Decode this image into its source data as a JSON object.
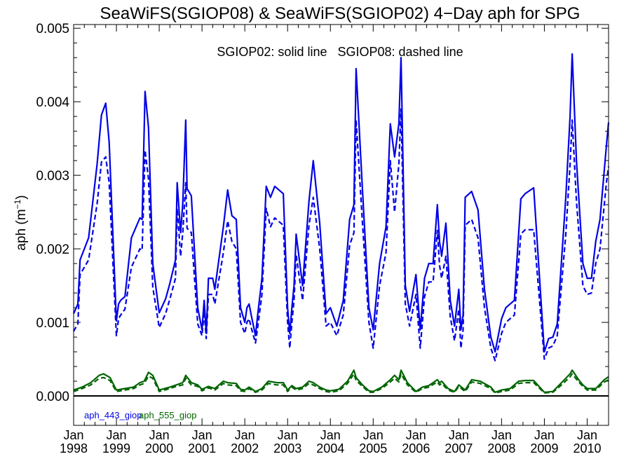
{
  "chart_data": {
    "type": "line",
    "title": "SeaWiFS(SGIOP08) & SeaWiFS(SGIOP02) 4−Day aph for SPG",
    "annotation": "SGIOP02: solid line   SGIOP08: dashed line",
    "ylabel_main": "aph (m",
    "ylabel_sup": "−1",
    "ylabel_close": ")",
    "xlim": [
      1998.0,
      2010.5
    ],
    "ylim": [
      -0.0004,
      0.00505
    ],
    "y_ticks": [
      0.0,
      0.001,
      0.002,
      0.003,
      0.004,
      0.005
    ],
    "y_tick_labels": [
      "0.000",
      "0.001",
      "0.002",
      "0.003",
      "0.004",
      "0.005"
    ],
    "x_ticks": [
      1998,
      1999,
      2000,
      2001,
      2002,
      2003,
      2004,
      2005,
      2006,
      2007,
      2008,
      2009,
      2010
    ],
    "x_tick_month": "Jan",
    "x_tick_years": [
      "1998",
      "1999",
      "2000",
      "2001",
      "2002",
      "2003",
      "2004",
      "2005",
      "2006",
      "2007",
      "2008",
      "2009",
      "2010"
    ],
    "zero_line": 0.0,
    "legend": [
      {
        "label": "aph_443_giop",
        "color": "#0000e6"
      },
      {
        "label": "aph_555_giop",
        "color": "#006400"
      }
    ],
    "series": [
      {
        "name": "aph_443_giop",
        "style": "solid",
        "color": "#0000e6",
        "x": [
          1998.0,
          1998.1,
          1998.15,
          1998.35,
          1998.55,
          1998.65,
          1998.75,
          1998.83,
          1999.0,
          1999.05,
          1999.1,
          1999.2,
          1999.35,
          1999.55,
          1999.6,
          1999.67,
          1999.75,
          1999.85,
          2000.0,
          2000.15,
          2000.25,
          2000.38,
          2000.42,
          2000.5,
          2000.55,
          2000.62,
          2000.65,
          2000.75,
          2000.9,
          2001.0,
          2001.05,
          2001.1,
          2001.15,
          2001.25,
          2001.3,
          2001.5,
          2001.6,
          2001.7,
          2001.8,
          2001.9,
          2002.0,
          2002.05,
          2002.1,
          2002.15,
          2002.25,
          2002.3,
          2002.4,
          2002.5,
          2002.6,
          2002.7,
          2002.9,
          2003.0,
          2003.05,
          2003.1,
          2003.15,
          2003.2,
          2003.35,
          2003.5,
          2003.6,
          2003.75,
          2003.9,
          2004.0,
          2004.15,
          2004.3,
          2004.45,
          2004.55,
          2004.6,
          2004.75,
          2004.9,
          2005.0,
          2005.15,
          2005.3,
          2005.4,
          2005.5,
          2005.6,
          2005.65,
          2005.75,
          2005.85,
          2006.0,
          2006.1,
          2006.2,
          2006.3,
          2006.4,
          2006.5,
          2006.55,
          2006.6,
          2006.7,
          2006.8,
          2006.9,
          2007.0,
          2007.05,
          2007.1,
          2007.15,
          2007.3,
          2007.45,
          2007.6,
          2007.75,
          2007.85,
          2008.0,
          2008.1,
          2008.2,
          2008.3,
          2008.45,
          2008.55,
          2008.75,
          2009.0,
          2009.1,
          2009.2,
          2009.3,
          2009.5,
          2009.6,
          2009.65,
          2009.75,
          2009.9,
          2010.0,
          2010.1,
          2010.2,
          2010.3,
          2010.45,
          2010.5
        ],
        "values": [
          0.00112,
          0.00125,
          0.00185,
          0.00215,
          0.00316,
          0.00382,
          0.00398,
          0.00345,
          0.00102,
          0.00125,
          0.0013,
          0.00135,
          0.00215,
          0.00242,
          0.0024,
          0.00414,
          0.00365,
          0.0018,
          0.00113,
          0.00132,
          0.00153,
          0.00185,
          0.0029,
          0.00222,
          0.00262,
          0.00375,
          0.00282,
          0.00272,
          0.0012,
          0.0009,
          0.0013,
          0.00085,
          0.0016,
          0.0016,
          0.00145,
          0.0023,
          0.0028,
          0.00245,
          0.0024,
          0.0012,
          0.001,
          0.0012,
          0.00125,
          0.0011,
          0.00082,
          0.0011,
          0.0016,
          0.00285,
          0.0027,
          0.00285,
          0.00275,
          0.0012,
          0.00085,
          0.0012,
          0.0015,
          0.0022,
          0.0015,
          0.00265,
          0.0032,
          0.00235,
          0.00112,
          0.0012,
          0.00095,
          0.0013,
          0.0024,
          0.0026,
          0.00445,
          0.0028,
          0.0012,
          0.0009,
          0.0018,
          0.0023,
          0.0037,
          0.00325,
          0.0037,
          0.0046,
          0.0015,
          0.00115,
          0.00165,
          0.0009,
          0.0016,
          0.0018,
          0.0018,
          0.0026,
          0.0021,
          0.0019,
          0.00235,
          0.0013,
          0.00095,
          0.00145,
          0.0009,
          0.0011,
          0.0027,
          0.00278,
          0.00253,
          0.00145,
          0.0008,
          0.0006,
          0.00105,
          0.0012,
          0.00125,
          0.0013,
          0.00268,
          0.00275,
          0.00283,
          0.0006,
          0.00078,
          0.0008,
          0.00098,
          0.0027,
          0.0038,
          0.00465,
          0.0032,
          0.0018,
          0.0016,
          0.0016,
          0.0021,
          0.0024,
          0.0034,
          0.00372
        ]
      },
      {
        "name": "aph_443_giop (SGIOP08)",
        "style": "dashed",
        "color": "#0000e6",
        "x": [
          1998.0,
          1998.1,
          1998.15,
          1998.35,
          1998.55,
          1998.65,
          1998.75,
          1998.83,
          1999.0,
          1999.05,
          1999.1,
          1999.2,
          1999.35,
          1999.55,
          1999.6,
          1999.67,
          1999.75,
          1999.85,
          2000.0,
          2000.15,
          2000.25,
          2000.38,
          2000.42,
          2000.5,
          2000.55,
          2000.62,
          2000.65,
          2000.75,
          2000.9,
          2001.0,
          2001.05,
          2001.1,
          2001.15,
          2001.25,
          2001.3,
          2001.5,
          2001.6,
          2001.7,
          2001.8,
          2001.9,
          2002.0,
          2002.05,
          2002.1,
          2002.15,
          2002.25,
          2002.3,
          2002.4,
          2002.5,
          2002.6,
          2002.7,
          2002.9,
          2003.0,
          2003.05,
          2003.1,
          2003.15,
          2003.2,
          2003.35,
          2003.5,
          2003.6,
          2003.75,
          2003.9,
          2004.0,
          2004.15,
          2004.3,
          2004.45,
          2004.55,
          2004.6,
          2004.75,
          2004.9,
          2005.0,
          2005.15,
          2005.3,
          2005.4,
          2005.5,
          2005.6,
          2005.65,
          2005.75,
          2005.85,
          2006.0,
          2006.1,
          2006.2,
          2006.3,
          2006.4,
          2006.5,
          2006.55,
          2006.6,
          2006.7,
          2006.8,
          2006.9,
          2007.0,
          2007.05,
          2007.1,
          2007.15,
          2007.3,
          2007.45,
          2007.6,
          2007.75,
          2007.85,
          2008.0,
          2008.1,
          2008.2,
          2008.3,
          2008.45,
          2008.55,
          2008.75,
          2009.0,
          2009.1,
          2009.2,
          2009.3,
          2009.5,
          2009.6,
          2009.65,
          2009.75,
          2009.9,
          2010.0,
          2010.1,
          2010.2,
          2010.3,
          2010.45,
          2010.5
        ],
        "values": [
          0.00088,
          0.00098,
          0.00165,
          0.00185,
          0.00262,
          0.00318,
          0.00325,
          0.0029,
          0.00082,
          0.00105,
          0.0011,
          0.00118,
          0.00175,
          0.002,
          0.00198,
          0.00334,
          0.00295,
          0.00148,
          0.00093,
          0.00112,
          0.00132,
          0.0016,
          0.00255,
          0.0019,
          0.00222,
          0.0029,
          0.00228,
          0.00222,
          0.00098,
          0.00082,
          0.00115,
          0.00078,
          0.00138,
          0.00138,
          0.00125,
          0.00195,
          0.00238,
          0.0021,
          0.002,
          0.001,
          0.00085,
          0.001,
          0.00105,
          0.00093,
          0.00072,
          0.00093,
          0.00138,
          0.00255,
          0.0023,
          0.00242,
          0.00232,
          0.001,
          0.00065,
          0.001,
          0.0013,
          0.00192,
          0.0013,
          0.00232,
          0.0027,
          0.002,
          0.00095,
          0.001,
          0.00082,
          0.0011,
          0.00205,
          0.00222,
          0.00375,
          0.00235,
          0.001,
          0.00065,
          0.0015,
          0.00195,
          0.0032,
          0.0025,
          0.00315,
          0.0039,
          0.00125,
          0.00095,
          0.00138,
          0.00065,
          0.00135,
          0.00155,
          0.00155,
          0.00225,
          0.00178,
          0.0016,
          0.0019,
          0.00108,
          0.00075,
          0.00118,
          0.00065,
          0.0009,
          0.00232,
          0.0024,
          0.00215,
          0.0012,
          0.00065,
          0.00048,
          0.00085,
          0.001,
          0.00105,
          0.0011,
          0.0022,
          0.00226,
          0.00226,
          0.0005,
          0.00065,
          0.00068,
          0.00082,
          0.0022,
          0.00315,
          0.00375,
          0.00265,
          0.0015,
          0.00138,
          0.0014,
          0.0018,
          0.002,
          0.0029,
          0.00312
        ]
      },
      {
        "name": "aph_555_giop",
        "style": "solid",
        "color": "#006400",
        "x": [
          1998.0,
          1998.2,
          1998.4,
          1998.6,
          1998.7,
          1998.85,
          1999.0,
          1999.2,
          1999.4,
          1999.55,
          1999.65,
          1999.75,
          1999.85,
          2000.0,
          2000.25,
          2000.4,
          2000.55,
          2000.62,
          2000.75,
          2000.9,
          2001.0,
          2001.15,
          2001.3,
          2001.5,
          2001.6,
          2001.8,
          2001.9,
          2002.0,
          2002.1,
          2002.25,
          2002.4,
          2002.55,
          2002.75,
          2002.9,
          2003.0,
          2003.1,
          2003.2,
          2003.35,
          2003.5,
          2003.6,
          2003.75,
          2003.9,
          2004.0,
          2004.2,
          2004.4,
          2004.55,
          2004.6,
          2004.75,
          2004.9,
          2005.0,
          2005.2,
          2005.4,
          2005.5,
          2005.6,
          2005.65,
          2005.8,
          2005.9,
          2006.0,
          2006.15,
          2006.3,
          2006.5,
          2006.55,
          2006.6,
          2006.75,
          2006.9,
          2007.0,
          2007.15,
          2007.3,
          2007.5,
          2007.75,
          2007.85,
          2008.0,
          2008.2,
          2008.4,
          2008.55,
          2008.75,
          2009.0,
          2009.2,
          2009.4,
          2009.6,
          2009.65,
          2009.8,
          2009.9,
          2010.0,
          2010.2,
          2010.4,
          2010.5
        ],
        "values": [
          8e-05,
          0.00012,
          0.00018,
          0.00028,
          0.0003,
          0.00025,
          8e-05,
          0.0001,
          0.00012,
          0.00018,
          0.0002,
          0.00032,
          0.00028,
          8e-05,
          0.00012,
          0.00015,
          0.00018,
          0.00028,
          0.00018,
          0.00015,
          9e-05,
          0.00013,
          0.0001,
          0.0002,
          0.00018,
          0.00017,
          9e-05,
          8e-05,
          0.00012,
          6e-05,
          0.0001,
          0.0002,
          0.00018,
          0.00018,
          8e-05,
          0.00014,
          0.0001,
          0.00012,
          0.0002,
          0.00018,
          0.00012,
          8e-05,
          7e-05,
          9e-05,
          0.0002,
          0.00035,
          0.00025,
          0.00015,
          7e-05,
          6e-05,
          0.00012,
          0.00022,
          0.00028,
          0.00022,
          0.00035,
          0.00018,
          0.00012,
          6e-05,
          0.00012,
          0.00014,
          0.00022,
          0.00018,
          0.0002,
          0.0001,
          6e-05,
          0.00015,
          8e-05,
          0.00022,
          0.0002,
          0.00012,
          5e-05,
          8e-05,
          0.0001,
          0.0002,
          0.00021,
          0.00021,
          5e-05,
          6e-05,
          0.00018,
          0.0003,
          0.00035,
          0.00022,
          0.00015,
          0.0001,
          0.0001,
          0.00022,
          0.00026
        ]
      },
      {
        "name": "aph_555_giop (SGIOP08)",
        "style": "dashed",
        "color": "#006400",
        "x": [
          1998.0,
          1998.2,
          1998.4,
          1998.6,
          1998.7,
          1998.85,
          1999.0,
          1999.2,
          1999.4,
          1999.55,
          1999.65,
          1999.75,
          1999.85,
          2000.0,
          2000.25,
          2000.4,
          2000.55,
          2000.62,
          2000.75,
          2000.9,
          2001.0,
          2001.15,
          2001.3,
          2001.5,
          2001.6,
          2001.8,
          2001.9,
          2002.0,
          2002.1,
          2002.25,
          2002.4,
          2002.55,
          2002.75,
          2002.9,
          2003.0,
          2003.1,
          2003.2,
          2003.35,
          2003.5,
          2003.6,
          2003.75,
          2003.9,
          2004.0,
          2004.2,
          2004.4,
          2004.55,
          2004.6,
          2004.75,
          2004.9,
          2005.0,
          2005.2,
          2005.4,
          2005.5,
          2005.6,
          2005.65,
          2005.8,
          2005.9,
          2006.0,
          2006.15,
          2006.3,
          2006.5,
          2006.55,
          2006.6,
          2006.75,
          2006.9,
          2007.0,
          2007.15,
          2007.3,
          2007.5,
          2007.75,
          2007.85,
          2008.0,
          2008.2,
          2008.4,
          2008.55,
          2008.75,
          2009.0,
          2009.2,
          2009.4,
          2009.6,
          2009.65,
          2009.8,
          2009.9,
          2010.0,
          2010.2,
          2010.4,
          2010.5
        ],
        "values": [
          6e-05,
          0.0001,
          0.00015,
          0.00024,
          0.00025,
          0.00021,
          6e-05,
          8e-05,
          0.0001,
          0.00015,
          0.00017,
          0.00027,
          0.00024,
          6e-05,
          0.0001,
          0.00013,
          0.00015,
          0.00024,
          0.00015,
          0.00013,
          7e-05,
          0.00011,
          8e-05,
          0.00017,
          0.00015,
          0.00014,
          7e-05,
          6e-05,
          0.0001,
          5e-05,
          8e-05,
          0.00017,
          0.00015,
          0.00015,
          6e-05,
          0.00012,
          8e-05,
          0.0001,
          0.00017,
          0.00015,
          0.0001,
          6e-05,
          5e-05,
          7e-05,
          0.00017,
          0.0003,
          0.00021,
          0.00013,
          5e-05,
          5e-05,
          0.0001,
          0.00019,
          0.00024,
          0.00019,
          0.0003,
          0.00015,
          0.0001,
          5e-05,
          0.0001,
          0.00012,
          0.00019,
          0.00015,
          0.00017,
          8e-05,
          5e-05,
          0.00013,
          6e-05,
          0.00019,
          0.00017,
          0.0001,
          4e-05,
          6e-05,
          8e-05,
          0.00017,
          0.00018,
          0.00018,
          4e-05,
          5e-05,
          0.00015,
          0.00026,
          0.0003,
          0.00019,
          0.00013,
          8e-05,
          8e-05,
          0.00019,
          0.00022
        ]
      }
    ]
  }
}
